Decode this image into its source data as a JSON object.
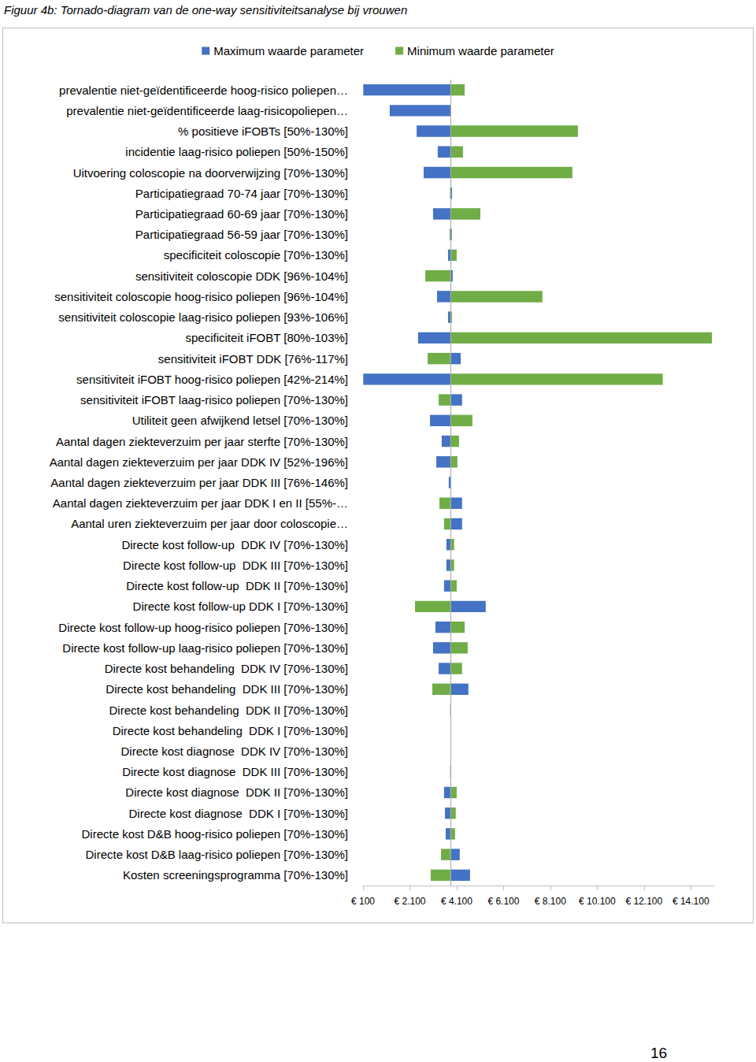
{
  "chart_data": {
    "type": "bar",
    "orientation": "horizontal",
    "title": "Figuur 4b: Tornado-diagram van de one-way sensitiviteitsanalyse bij vrouwen",
    "legend": "top",
    "grid": false,
    "baseline": 3830,
    "xlim": [
      100,
      15100
    ],
    "xticks": [
      {
        "value": 100,
        "label": "€ 100"
      },
      {
        "value": 2100,
        "label": "€ 2.100"
      },
      {
        "value": 4100,
        "label": "€ 4.100"
      },
      {
        "value": 6100,
        "label": "€ 6.100"
      },
      {
        "value": 8100,
        "label": "€ 8.100"
      },
      {
        "value": 10100,
        "label": "€ 10.100"
      },
      {
        "value": 12100,
        "label": "€ 12.100"
      },
      {
        "value": 14100,
        "label": "€ 14.100"
      }
    ],
    "categories": [
      "prevalentie niet-geïdentificeerde hoog-risico poliepen…",
      "prevalentie niet-geïdentificeerde laag-risicopoliepen…",
      "% positieve iFOBTs [50%-130%]",
      "incidentie laag-risico poliepen [50%-150%]",
      "Uitvoering coloscopie na doorverwijzing [70%-130%]",
      "Participatiegraad 70-74 jaar [70%-130%]",
      "Participatiegraad 60-69 jaar [70%-130%]",
      "Participatiegraad 56-59 jaar [70%-130%]",
      "specificiteit coloscopie [70%-130%]",
      "sensitiviteit coloscopie DDK [96%-104%]",
      "sensitiviteit coloscopie hoog-risico poliepen [96%-104%]",
      "sensitiviteit coloscopie laag-risico poliepen [93%-106%]",
      "specificiteit iFOBT [80%-103%]",
      "sensitiviteit iFOBT DDK [76%-117%]",
      "sensitiviteit iFOBT hoog-risico poliepen [42%-214%]",
      "sensitiviteit iFOBT laag-risico poliepen [70%-130%]",
      "Utiliteit geen afwijkend letsel [70%-130%]",
      "Aantal dagen ziekteverzuim per jaar sterfte [70%-130%]",
      "Aantal dagen ziekteverzuim per jaar DDK IV [52%-196%]",
      "Aantal dagen ziekteverzuim per jaar DDK III [76%-146%]",
      "Aantal dagen ziekteverzuim per jaar DDK I en II [55%-…",
      "Aantal uren ziekteverzuim per jaar door coloscopie…",
      "Directe kost follow-up  DDK IV [70%-130%]",
      "Directe kost follow-up  DDK III [70%-130%]",
      "Directe kost follow-up  DDK II [70%-130%]",
      "Directe kost follow-up DDK I [70%-130%]",
      "Directe kost follow-up hoog-risico poliepen [70%-130%]",
      "Directe kost follow-up laag-risico poliepen [70%-130%]",
      "Directe kost behandeling  DDK IV [70%-130%]",
      "Directe kost behandeling  DDK III [70%-130%]",
      "Directe kost behandeling  DDK II [70%-130%]",
      "Directe kost behandeling  DDK I [70%-130%]",
      "Directe kost diagnose  DDK IV [70%-130%]",
      "Directe kost diagnose  DDK III [70%-130%]",
      "Directe kost diagnose  DDK II [70%-130%]",
      "Directe kost diagnose  DDK I [70%-130%]",
      "Directe kost D&B hoog-risico poliepen [70%-130%]",
      "Directe kost D&B laag-risico poliepen [70%-130%]",
      "Kosten screeningsprogramma [70%-130%]"
    ],
    "series": [
      {
        "name": "Maximum waarde parameter",
        "color": "#4472c4",
        "values": [
          110,
          1240,
          2390,
          3290,
          2690,
          3900,
          3090,
          3800,
          3730,
          3930,
          3260,
          3730,
          2450,
          4270,
          110,
          4330,
          2960,
          3460,
          3230,
          3760,
          4330,
          4330,
          3660,
          3660,
          3560,
          5340,
          3190,
          3090,
          3330,
          4600,
          3840,
          3830,
          3830,
          3840,
          3560,
          3600,
          3630,
          4230,
          4670
        ]
      },
      {
        "name": "Minimum waarde parameter",
        "color": "#70ad47",
        "values": [
          4440,
          3830,
          9280,
          4370,
          9040,
          3810,
          5110,
          3900,
          4100,
          2760,
          7760,
          3900,
          15000,
          2860,
          12900,
          3330,
          4770,
          4200,
          4130,
          3830,
          3360,
          3560,
          3990,
          3990,
          4100,
          2320,
          4440,
          4570,
          4330,
          3060,
          3820,
          3830,
          3830,
          3820,
          4100,
          4060,
          4030,
          3430,
          2990
        ]
      }
    ]
  },
  "page_number": "16"
}
